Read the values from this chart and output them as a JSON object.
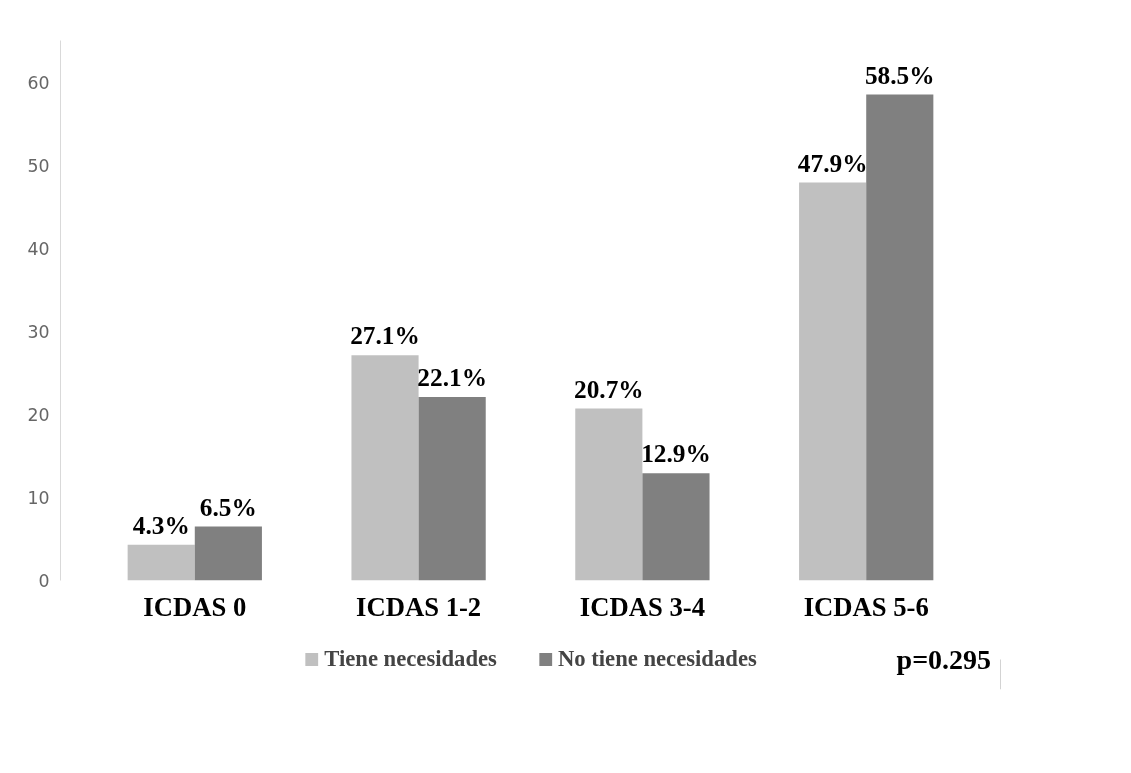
{
  "chart_data": {
    "type": "bar",
    "categories": [
      "ICDAS 0",
      "ICDAS 1-2",
      "ICDAS 3-4",
      "ICDAS 5-6"
    ],
    "series": [
      {
        "name": "Tiene necesidades",
        "color": "#c0c0c0",
        "values": [
          4.3,
          27.1,
          20.7,
          47.9
        ],
        "value_labels": [
          "4.3%",
          "27.1%",
          "20.7%",
          "47.9%"
        ]
      },
      {
        "name": "No tiene necesidades",
        "color": "#808080",
        "values": [
          6.5,
          22.1,
          12.9,
          58.5
        ],
        "value_labels": [
          "6.5%",
          "22.1%",
          "12.9%",
          "58.5%"
        ]
      }
    ],
    "ylim": [
      0,
      65
    ],
    "yticks": [
      0,
      10,
      20,
      30,
      40,
      50,
      60
    ],
    "grid": false,
    "legend": "bottom",
    "annotations": [
      "p=0.295"
    ]
  }
}
